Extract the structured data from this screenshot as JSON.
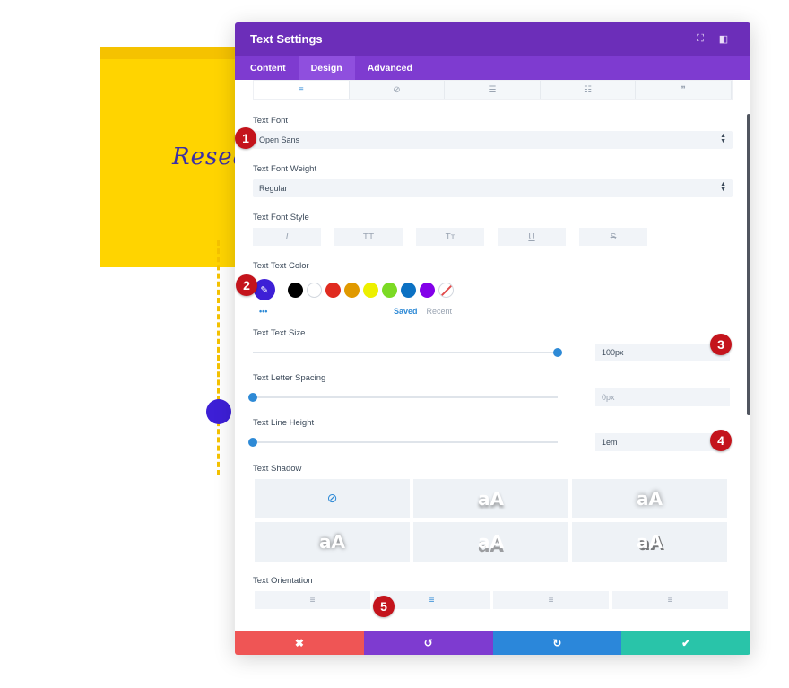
{
  "background": {
    "module_text": "Resea"
  },
  "modal": {
    "title": "Text Settings",
    "header_icons": [
      "fullscreen-icon",
      "sidebar-dock-icon"
    ],
    "tabs": [
      {
        "label": "Content"
      },
      {
        "label": "Design"
      },
      {
        "label": "Advanced"
      }
    ],
    "align_tabs": [
      {
        "icon": "align-left-icon",
        "glyph": "≡"
      },
      {
        "icon": "no-link-icon",
        "glyph": "⊘"
      },
      {
        "icon": "unordered-list-icon",
        "glyph": "☰"
      },
      {
        "icon": "ordered-list-icon",
        "glyph": "☷"
      },
      {
        "icon": "quote-icon",
        "glyph": "❞"
      }
    ],
    "text_font": {
      "label": "Text Font",
      "value": "Open Sans"
    },
    "text_font_weight": {
      "label": "Text Font Weight",
      "value": "Regular"
    },
    "text_font_style": {
      "label": "Text Font Style",
      "buttons": [
        {
          "name": "italic",
          "glyph": "I"
        },
        {
          "name": "uppercase",
          "glyph": "TT"
        },
        {
          "name": "small-caps",
          "glyph": "Tт"
        },
        {
          "name": "underline",
          "glyph": "U"
        },
        {
          "name": "strikethrough",
          "glyph": "S"
        }
      ]
    },
    "text_color": {
      "label": "Text Text Color",
      "picker_glyph": "✎",
      "swatches": [
        "#000000",
        "#ffffff",
        "#e02b20",
        "#e09900",
        "#edf000",
        "#7cda24",
        "#0c71c3",
        "#8300e9"
      ],
      "more": "•••",
      "saved": "Saved",
      "recent": "Recent"
    },
    "text_size": {
      "label": "Text Text Size",
      "value": "100px",
      "level": 1.0
    },
    "letter_spacing": {
      "label": "Text Letter Spacing",
      "value": "0px",
      "level": 0.0
    },
    "line_height": {
      "label": "Text Line Height",
      "value": "1em",
      "level": 0.0
    },
    "text_shadow": {
      "label": "Text Shadow",
      "none_glyph": "⊘",
      "preview_text": "aA"
    },
    "text_orientation": {
      "label": "Text Orientation",
      "options": [
        {
          "name": "left",
          "glyph": "≡"
        },
        {
          "name": "center",
          "glyph": "≡"
        },
        {
          "name": "right",
          "glyph": "≡"
        },
        {
          "name": "justify",
          "glyph": "≡"
        }
      ]
    },
    "footer": {
      "cancel": "✖",
      "undo": "↺",
      "redo": "↻",
      "save": "✔"
    }
  },
  "badges": [
    "1",
    "2",
    "3",
    "4",
    "5"
  ],
  "colors": {
    "header": "#6c2eb9",
    "tabs": "#7e3bd0",
    "accent": "#2e8ad6",
    "badge": "#c4141c",
    "yellow": "#ffd400"
  }
}
